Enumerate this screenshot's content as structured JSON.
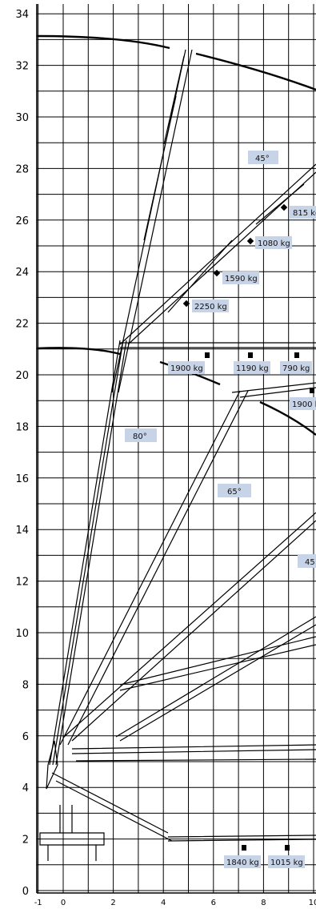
{
  "y_axis": {
    "ticks": [
      {
        "value": 0,
        "label": "0"
      },
      {
        "value": 2,
        "label": "2"
      },
      {
        "value": 4,
        "label": "4"
      },
      {
        "value": 6,
        "label": "6"
      },
      {
        "value": 8,
        "label": "8"
      },
      {
        "value": 10,
        "label": "10"
      },
      {
        "value": 12,
        "label": "12"
      },
      {
        "value": 14,
        "label": "14"
      },
      {
        "value": 16,
        "label": "16"
      },
      {
        "value": 18,
        "label": "18"
      },
      {
        "value": 20,
        "label": "20"
      },
      {
        "value": 22,
        "label": "22"
      },
      {
        "value": 24,
        "label": "24"
      },
      {
        "value": 26,
        "label": "26"
      },
      {
        "value": 28,
        "label": "28"
      },
      {
        "value": 30,
        "label": "30"
      },
      {
        "value": 32,
        "label": "32"
      },
      {
        "value": 34,
        "label": "34"
      }
    ]
  },
  "x_axis": {
    "ticks": [
      {
        "value": -1,
        "label": "-1"
      },
      {
        "value": 0,
        "label": "0"
      },
      {
        "value": 2,
        "label": "2"
      },
      {
        "value": 4,
        "label": "4"
      },
      {
        "value": 6,
        "label": "6"
      },
      {
        "value": 8,
        "label": "8"
      },
      {
        "value": 10,
        "label": "10"
      }
    ]
  },
  "angle_labels": [
    {
      "text": "45°"
    },
    {
      "text": "80°"
    },
    {
      "text": "65°"
    },
    {
      "text": "45"
    }
  ],
  "load_labels": [
    {
      "text": "815 kg"
    },
    {
      "text": "1080 kg"
    },
    {
      "text": "1590 kg"
    },
    {
      "text": "2250 kg"
    },
    {
      "text": "1900 kg"
    },
    {
      "text": "1190 kg"
    },
    {
      "text": "790 kg"
    },
    {
      "text": "1900 k"
    },
    {
      "text": "1840 kg"
    },
    {
      "text": "1015 kg"
    }
  ]
}
